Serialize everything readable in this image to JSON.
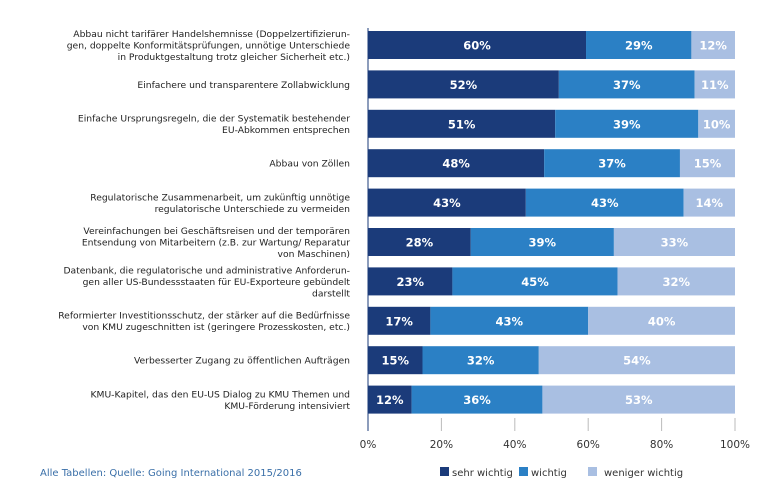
{
  "chart_data": {
    "type": "bar",
    "orientation": "horizontal",
    "stacked": true,
    "categories": [
      [
        "Abbau nicht tarifärer Handelshemnisse (Doppelzertifizierun-",
        "gen, doppelte Konformitätsprüfungen, unnötige Unterschiede",
        "in Produktgestaltung trotz gleicher Sicherheit etc.)"
      ],
      [
        "Einfachere und transparentere Zollabwicklung"
      ],
      [
        "Einfache Ursprungsregeln, die der Systematik bestehender",
        "EU-Abkommen entsprechen"
      ],
      [
        "Abbau von Zöllen"
      ],
      [
        "Regulatorische Zusammenarbeit, um zukünftig unnötige",
        "regulatorische Unterschiede zu vermeiden"
      ],
      [
        "Vereinfachungen bei Geschäftsreisen und der temporären",
        "Entsendung von Mitarbeitern (z.B. zur Wartung/ Reparatur",
        "von Maschinen)"
      ],
      [
        "Datenbank, die regulatorische und administrative Anforderun-",
        "gen aller US-Bundessstaaten für EU-Exporteure gebündelt",
        "darstellt"
      ],
      [
        "Reformierter Investitionsschutz, der stärker auf die Bedürfnisse",
        "von KMU zugeschnitten ist (geringere Prozesskosten, etc.)"
      ],
      [
        "Verbesserter Zugang zu öffentlichen Aufträgen"
      ],
      [
        "KMU-Kapitel, das den EU-US Dialog zu KMU Themen und",
        "KMU-Förderung intensiviert"
      ]
    ],
    "series": [
      {
        "name": "sehr wichtig",
        "color": "#1b3b7a",
        "values": [
          60,
          52,
          51,
          48,
          43,
          28,
          23,
          17,
          15,
          12
        ]
      },
      {
        "name": "wichtig",
        "color": "#2b80c5",
        "values": [
          29,
          37,
          39,
          37,
          43,
          39,
          45,
          43,
          32,
          36
        ]
      },
      {
        "name": "weniger wichtig",
        "color": "#a9bfe2",
        "values": [
          12,
          11,
          10,
          15,
          14,
          33,
          32,
          40,
          54,
          53
        ]
      }
    ],
    "value_suffix": "%",
    "xlim": [
      0,
      100
    ],
    "xticks": [
      "0%",
      "20%",
      "40%",
      "60%",
      "80%",
      "100%"
    ],
    "legend": "bottom",
    "grid": false
  },
  "source": "Alle Tabellen: Quelle: Going International 2015/2016"
}
